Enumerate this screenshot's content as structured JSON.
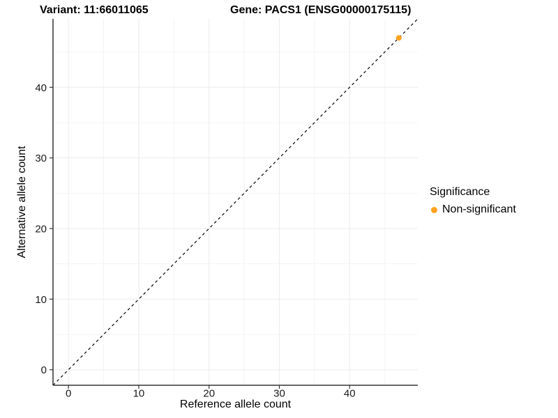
{
  "figure": {
    "title_left": "Variant: 11:66011065",
    "title_right": "Gene: PACS1 (ENSG00000175115)"
  },
  "axes": {
    "x_label": "Reference allele count",
    "y_label": "Alternative allele count"
  },
  "legend": {
    "title": "Significance",
    "items": [
      {
        "label": "Non-significant",
        "color": "#FFA320"
      }
    ]
  },
  "colors": {
    "point": "#FFA320",
    "axis_line": "#333333",
    "tick_text": "#1a1a1a",
    "grid_major": "#EBEBEB",
    "grid_minor": "#F4F4F4",
    "reference_line": "#000000",
    "background": "#FFFFFF"
  },
  "chart_data": {
    "type": "scatter",
    "title": "Variant: 11:66011065    Gene: PACS1 (ENSG00000175115)",
    "xlabel": "Reference allele count",
    "ylabel": "Alternative allele count",
    "xlim": [
      -2.2,
      49.7
    ],
    "ylim": [
      -2.2,
      49.7
    ],
    "x_ticks": [
      0,
      10,
      20,
      30,
      40
    ],
    "y_ticks": [
      0,
      10,
      20,
      30,
      40
    ],
    "x_minor": [
      5,
      15,
      25,
      35,
      45
    ],
    "y_minor": [
      5,
      15,
      25,
      35,
      45
    ],
    "grid": true,
    "legend_title": "Significance",
    "legend_position": "right",
    "series": [
      {
        "name": "Non-significant",
        "color": "#FFA320",
        "points": [
          {
            "x": 47,
            "y": 47
          }
        ]
      }
    ],
    "reference_line": {
      "type": "identity",
      "equation": "y = x",
      "style": "dashed"
    }
  }
}
